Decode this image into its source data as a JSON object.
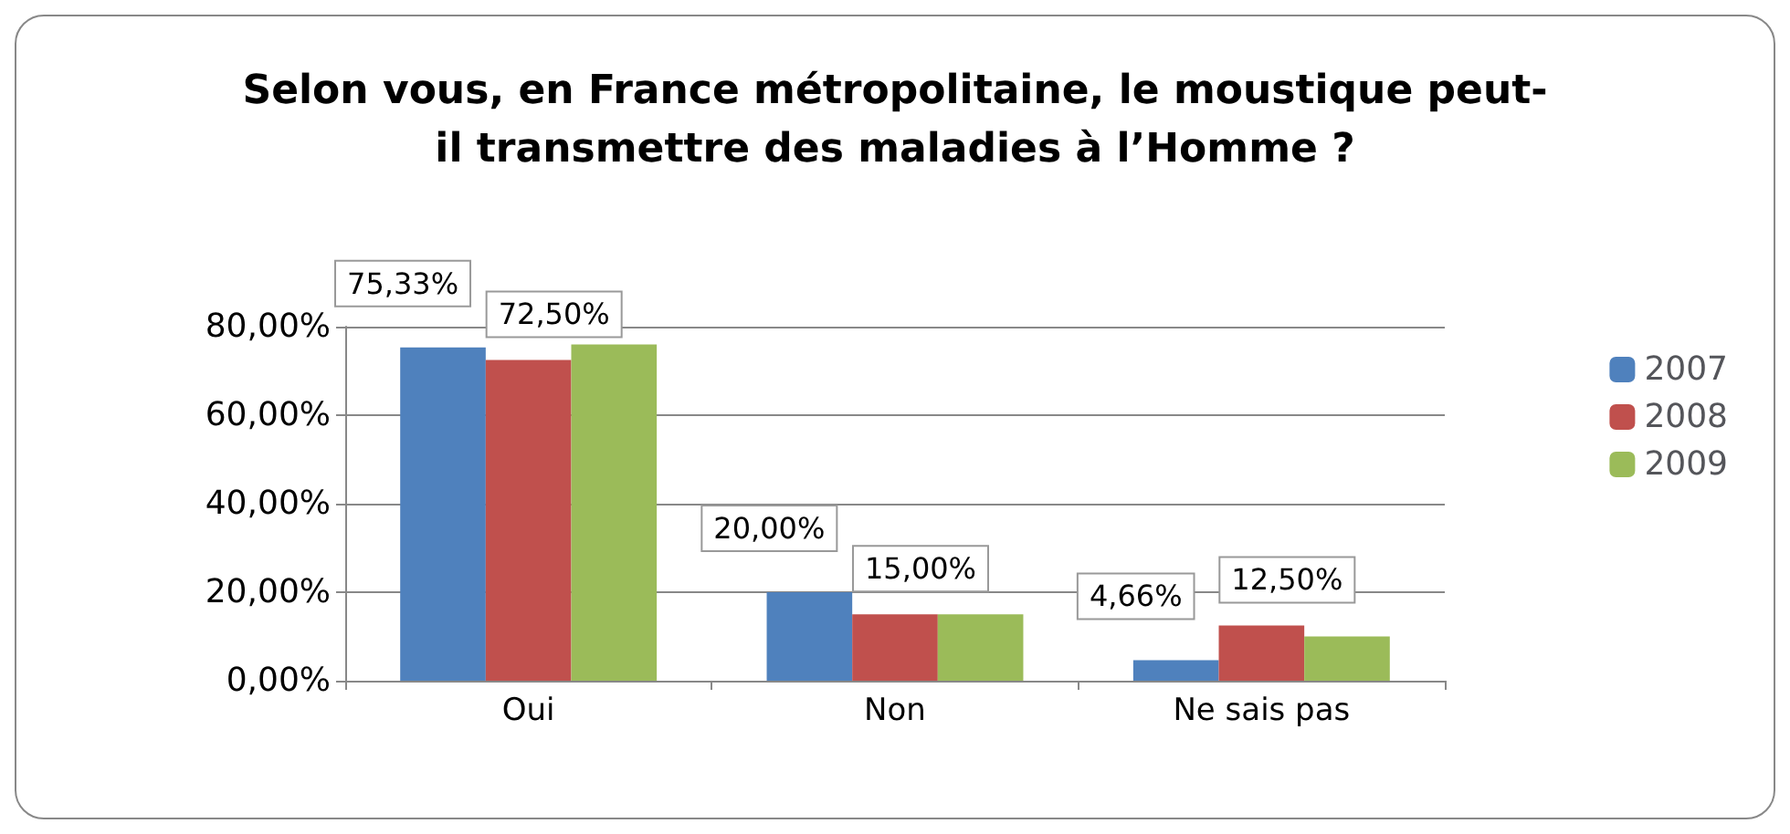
{
  "chart_data": {
    "type": "bar",
    "title": "Selon vous, en France métropolitaine, le moustique peut-\nil transmettre des maladies à l’Homme ?",
    "categories": [
      "Oui",
      "Non",
      "Ne sais pas"
    ],
    "series": [
      {
        "name": "2007",
        "color": "#4f81bd",
        "values": [
          75.33,
          20,
          4.66
        ],
        "value_labels": [
          "75,33%",
          "20,00%",
          "4,66%"
        ]
      },
      {
        "name": "2008",
        "color": "#c0504d",
        "values": [
          72.5,
          15,
          12.5
        ],
        "value_labels": [
          "72,50%",
          "15,00%",
          "12,50%"
        ]
      },
      {
        "name": "2009",
        "color": "#9bbb59",
        "values": [
          76,
          15,
          10
        ]
      }
    ],
    "ylim": [
      0,
      80
    ],
    "yticks": [
      {
        "value": 0,
        "label": "0,00%"
      },
      {
        "value": 20,
        "label": "20,00%"
      },
      {
        "value": 40,
        "label": "40,00%"
      },
      {
        "value": 60,
        "label": "60,00%"
      },
      {
        "value": 80,
        "label": "80,00%"
      }
    ],
    "grid": "y",
    "legend": "right"
  }
}
